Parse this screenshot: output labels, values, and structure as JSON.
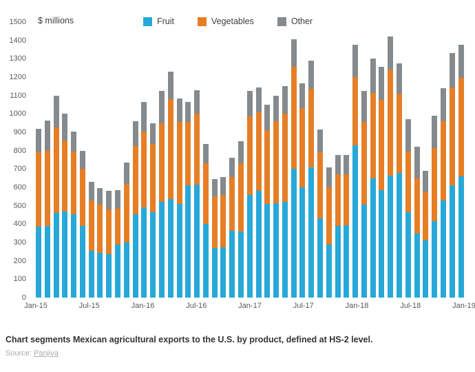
{
  "header": {
    "unit_label": "$ millions"
  },
  "chart_data": {
    "type": "bar",
    "stacked": true,
    "title": "",
    "xlabel": "",
    "ylabel": "$ millions",
    "ylim": [
      0,
      1500
    ],
    "ytick_step": 100,
    "grid": false,
    "legend_position": "top",
    "x_axis_tick_labels": [
      "Jan-15",
      "Jul-15",
      "Jan-16",
      "Jul-16",
      "Jan-17",
      "Jul-17",
      "Jan-18",
      "Jul-18",
      "Jan-19"
    ],
    "x_tick_every": 6,
    "categories": [
      "Jan-15",
      "Feb-15",
      "Mar-15",
      "Apr-15",
      "May-15",
      "Jun-15",
      "Jul-15",
      "Aug-15",
      "Sep-15",
      "Oct-15",
      "Nov-15",
      "Dec-15",
      "Jan-16",
      "Feb-16",
      "Mar-16",
      "Apr-16",
      "May-16",
      "Jun-16",
      "Jul-16",
      "Aug-16",
      "Sep-16",
      "Oct-16",
      "Nov-16",
      "Dec-16",
      "Jan-17",
      "Feb-17",
      "Mar-17",
      "Apr-17",
      "May-17",
      "Jun-17",
      "Jul-17",
      "Aug-17",
      "Sep-17",
      "Oct-17",
      "Nov-17",
      "Dec-17",
      "Jan-18",
      "Feb-18",
      "Mar-18",
      "Apr-18",
      "May-18",
      "Jun-18",
      "Jul-18",
      "Aug-18",
      "Sep-18",
      "Oct-18",
      "Nov-18",
      "Dec-18",
      "Jan-19"
    ],
    "series": [
      {
        "name": "Fruit",
        "color": "#28A8D8",
        "values": [
          385,
          390,
          460,
          470,
          455,
          390,
          255,
          245,
          235,
          290,
          300,
          455,
          490,
          465,
          520,
          535,
          510,
          610,
          615,
          400,
          270,
          275,
          365,
          360,
          560,
          580,
          510,
          515,
          520,
          700,
          600,
          710,
          430,
          290,
          390,
          395,
          830,
          505,
          650,
          585,
          665,
          680,
          465,
          350,
          310,
          415,
          530,
          610,
          660
        ]
      },
      {
        "name": "Vegetables",
        "color": "#E67E26",
        "values": [
          405,
          410,
          465,
          385,
          340,
          310,
          275,
          260,
          245,
          195,
          320,
          370,
          415,
          370,
          430,
          545,
          445,
          345,
          385,
          330,
          280,
          285,
          290,
          370,
          425,
          430,
          400,
          445,
          480,
          555,
          430,
          425,
          360,
          310,
          280,
          275,
          370,
          450,
          465,
          490,
          575,
          430,
          330,
          300,
          265,
          400,
          430,
          535,
          535
        ]
      },
      {
        "name": "Other",
        "color": "#848A8D",
        "values": [
          130,
          165,
          175,
          145,
          110,
          100,
          100,
          90,
          100,
          100,
          115,
          135,
          160,
          115,
          175,
          150,
          130,
          110,
          130,
          105,
          95,
          95,
          105,
          120,
          140,
          135,
          140,
          140,
          150,
          150,
          135,
          155,
          125,
          110,
          105,
          105,
          175,
          170,
          185,
          180,
          180,
          165,
          175,
          170,
          115,
          175,
          180,
          185,
          180
        ]
      }
    ]
  },
  "caption": {
    "text": "Chart segments Mexican agricultural exports to the U.S. by product, defined at HS-2 level.",
    "source_prefix": "Source: ",
    "source_link_text": "Panjiva"
  },
  "colors": {
    "axis_text": "#595959",
    "caption_text": "#333333",
    "source_text": "#a6aaac"
  }
}
